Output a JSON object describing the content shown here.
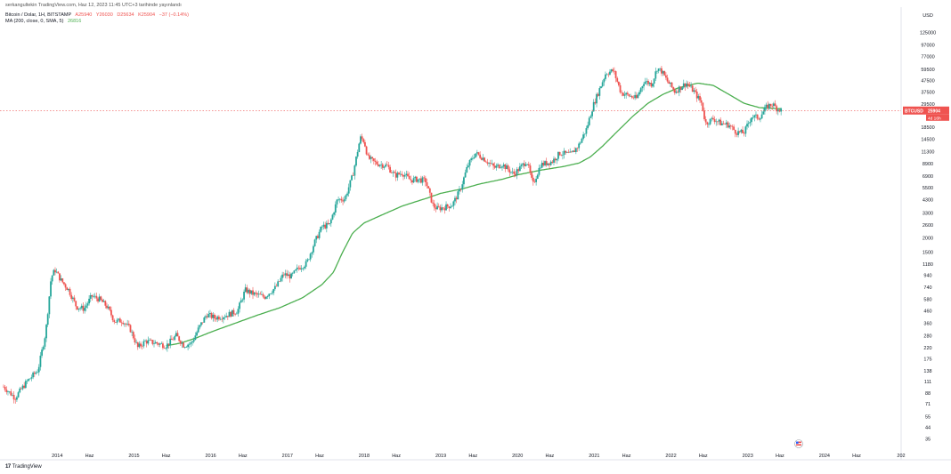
{
  "header": {
    "publisher": "serkangultekin TradingView.com, Haz 12, 2023 11:45 UTC+3 tarihinde yayınlandı"
  },
  "legend": {
    "symbol": "Bitcoin / Dolar, 1H, BITSTAMP",
    "o": "A25940",
    "h": "Y26030",
    "l": "D25634",
    "c": "K25904",
    "chg": "−37 (−0.14%)",
    "ma_label": "MA (200, close, 0, SMA, 5)",
    "ma_value": "26816"
  },
  "price_tag": {
    "symbol": "BTCUSD",
    "price": "25904",
    "countdown": "4d 16h"
  },
  "footer": {
    "brand": "TradingView"
  },
  "colors": {
    "up": "#26a69a",
    "down": "#ef5350",
    "ma": "#4caf50",
    "price_tag": "#ef5350"
  },
  "chart_data": {
    "type": "candlestick",
    "scale": "log",
    "currency": "USD",
    "ylim": [
      28,
      140000
    ],
    "y_ticks": [
      "125000",
      "97000",
      "77000",
      "59500",
      "47500",
      "37500",
      "29500",
      "18500",
      "14500",
      "11300",
      "8900",
      "6900",
      "5500",
      "4300",
      "3300",
      "2600",
      "2000",
      "1500",
      "1180",
      "940",
      "740",
      "580",
      "460",
      "360",
      "280",
      "220",
      "175",
      "138",
      "111",
      "88",
      "71",
      "55",
      "44",
      "35"
    ],
    "y_tick_values": [
      125000,
      97000,
      77000,
      59500,
      47500,
      37500,
      29500,
      18500,
      14500,
      11300,
      8900,
      6900,
      5500,
      4300,
      3300,
      2600,
      2000,
      1500,
      1180,
      940,
      740,
      580,
      460,
      360,
      280,
      220,
      175,
      138,
      111,
      88,
      71,
      55,
      44,
      35
    ],
    "x_range": [
      2013.3,
      2025.0
    ],
    "x_ticks": [
      "2014",
      "Haz",
      "2015",
      "Haz",
      "2016",
      "Haz",
      "2017",
      "Haz",
      "2018",
      "Haz",
      "2019",
      "Haz",
      "2020",
      "Haz",
      "2021",
      "Haz",
      "2022",
      "Haz",
      "2023",
      "Haz",
      "2024",
      "Haz",
      "202"
    ],
    "x_tick_values": [
      2014.0,
      2014.42,
      2015.0,
      2015.42,
      2016.0,
      2016.42,
      2017.0,
      2017.42,
      2018.0,
      2018.42,
      2019.0,
      2019.42,
      2020.0,
      2020.42,
      2021.0,
      2021.42,
      2022.0,
      2022.42,
      2023.0,
      2023.42,
      2024.0,
      2024.42,
      2025.0
    ],
    "price_anchors": [
      [
        2013.3,
        100
      ],
      [
        2013.45,
        80
      ],
      [
        2013.6,
        110
      ],
      [
        2013.75,
        140
      ],
      [
        2013.85,
        300
      ],
      [
        2013.92,
        900
      ],
      [
        2013.97,
        1050
      ],
      [
        2014.05,
        850
      ],
      [
        2014.15,
        700
      ],
      [
        2014.25,
        500
      ],
      [
        2014.35,
        480
      ],
      [
        2014.45,
        620
      ],
      [
        2014.55,
        580
      ],
      [
        2014.65,
        500
      ],
      [
        2014.75,
        370
      ],
      [
        2014.85,
        380
      ],
      [
        2014.95,
        320
      ],
      [
        2015.05,
        220
      ],
      [
        2015.15,
        250
      ],
      [
        2015.3,
        240
      ],
      [
        2015.42,
        228
      ],
      [
        2015.55,
        280
      ],
      [
        2015.65,
        230
      ],
      [
        2015.75,
        240
      ],
      [
        2015.85,
        330
      ],
      [
        2015.95,
        430
      ],
      [
        2016.05,
        400
      ],
      [
        2016.2,
        420
      ],
      [
        2016.35,
        460
      ],
      [
        2016.45,
        700
      ],
      [
        2016.55,
        650
      ],
      [
        2016.7,
        610
      ],
      [
        2016.85,
        740
      ],
      [
        2016.95,
        960
      ],
      [
        2017.05,
        920
      ],
      [
        2017.15,
        1100
      ],
      [
        2017.25,
        1200
      ],
      [
        2017.35,
        1800
      ],
      [
        2017.45,
        2500
      ],
      [
        2017.55,
        2600
      ],
      [
        2017.65,
        4300
      ],
      [
        2017.75,
        4400
      ],
      [
        2017.85,
        7000
      ],
      [
        2017.95,
        15000
      ],
      [
        2018.0,
        14000
      ],
      [
        2018.05,
        10000
      ],
      [
        2018.15,
        9000
      ],
      [
        2018.3,
        8500
      ],
      [
        2018.4,
        7000
      ],
      [
        2018.5,
        7400
      ],
      [
        2018.6,
        6400
      ],
      [
        2018.7,
        6500
      ],
      [
        2018.8,
        6300
      ],
      [
        2018.9,
        3800
      ],
      [
        2018.95,
        3600
      ],
      [
        2019.05,
        3700
      ],
      [
        2019.15,
        3900
      ],
      [
        2019.25,
        5200
      ],
      [
        2019.35,
        8500
      ],
      [
        2019.45,
        11000
      ],
      [
        2019.55,
        10000
      ],
      [
        2019.7,
        8200
      ],
      [
        2019.8,
        8800
      ],
      [
        2019.95,
        7200
      ],
      [
        2020.05,
        8400
      ],
      [
        2020.12,
        9500
      ],
      [
        2020.2,
        5800
      ],
      [
        2020.3,
        8700
      ],
      [
        2020.45,
        9300
      ],
      [
        2020.55,
        11000
      ],
      [
        2020.7,
        10700
      ],
      [
        2020.8,
        13000
      ],
      [
        2020.9,
        18000
      ],
      [
        2020.98,
        28000
      ],
      [
        2021.05,
        37000
      ],
      [
        2021.15,
        55000
      ],
      [
        2021.25,
        58000
      ],
      [
        2021.35,
        37000
      ],
      [
        2021.45,
        35000
      ],
      [
        2021.55,
        33000
      ],
      [
        2021.65,
        47000
      ],
      [
        2021.75,
        44000
      ],
      [
        2021.82,
        61000
      ],
      [
        2021.88,
        57000
      ],
      [
        2021.95,
        47000
      ],
      [
        2022.05,
        38000
      ],
      [
        2022.2,
        45000
      ],
      [
        2022.3,
        38000
      ],
      [
        2022.4,
        30000
      ],
      [
        2022.45,
        20000
      ],
      [
        2022.55,
        22000
      ],
      [
        2022.65,
        20000
      ],
      [
        2022.75,
        19500
      ],
      [
        2022.85,
        16800
      ],
      [
        2022.95,
        16500
      ],
      [
        2023.05,
        23000
      ],
      [
        2023.15,
        22500
      ],
      [
        2023.25,
        28000
      ],
      [
        2023.32,
        29500
      ],
      [
        2023.38,
        27000
      ],
      [
        2023.45,
        25904
      ]
    ],
    "ma_anchors": [
      [
        2015.42,
        228
      ],
      [
        2015.6,
        240
      ],
      [
        2015.8,
        265
      ],
      [
        2016.0,
        300
      ],
      [
        2016.3,
        355
      ],
      [
        2016.6,
        420
      ],
      [
        2016.9,
        490
      ],
      [
        2017.2,
        600
      ],
      [
        2017.45,
        780
      ],
      [
        2017.6,
        1000
      ],
      [
        2017.72,
        1500
      ],
      [
        2017.85,
        2200
      ],
      [
        2018.0,
        2700
      ],
      [
        2018.2,
        3100
      ],
      [
        2018.5,
        3800
      ],
      [
        2018.8,
        4400
      ],
      [
        2019.0,
        4900
      ],
      [
        2019.3,
        5400
      ],
      [
        2019.5,
        5900
      ],
      [
        2019.8,
        6500
      ],
      [
        2020.0,
        7100
      ],
      [
        2020.3,
        7800
      ],
      [
        2020.6,
        8400
      ],
      [
        2020.8,
        9000
      ],
      [
        2020.95,
        10200
      ],
      [
        2021.1,
        12500
      ],
      [
        2021.3,
        17000
      ],
      [
        2021.5,
        23000
      ],
      [
        2021.7,
        30000
      ],
      [
        2021.9,
        36000
      ],
      [
        2022.1,
        41000
      ],
      [
        2022.35,
        45000
      ],
      [
        2022.55,
        43000
      ],
      [
        2022.75,
        36000
      ],
      [
        2022.95,
        30000
      ],
      [
        2023.15,
        27500
      ],
      [
        2023.35,
        27000
      ],
      [
        2023.45,
        26816
      ]
    ]
  }
}
